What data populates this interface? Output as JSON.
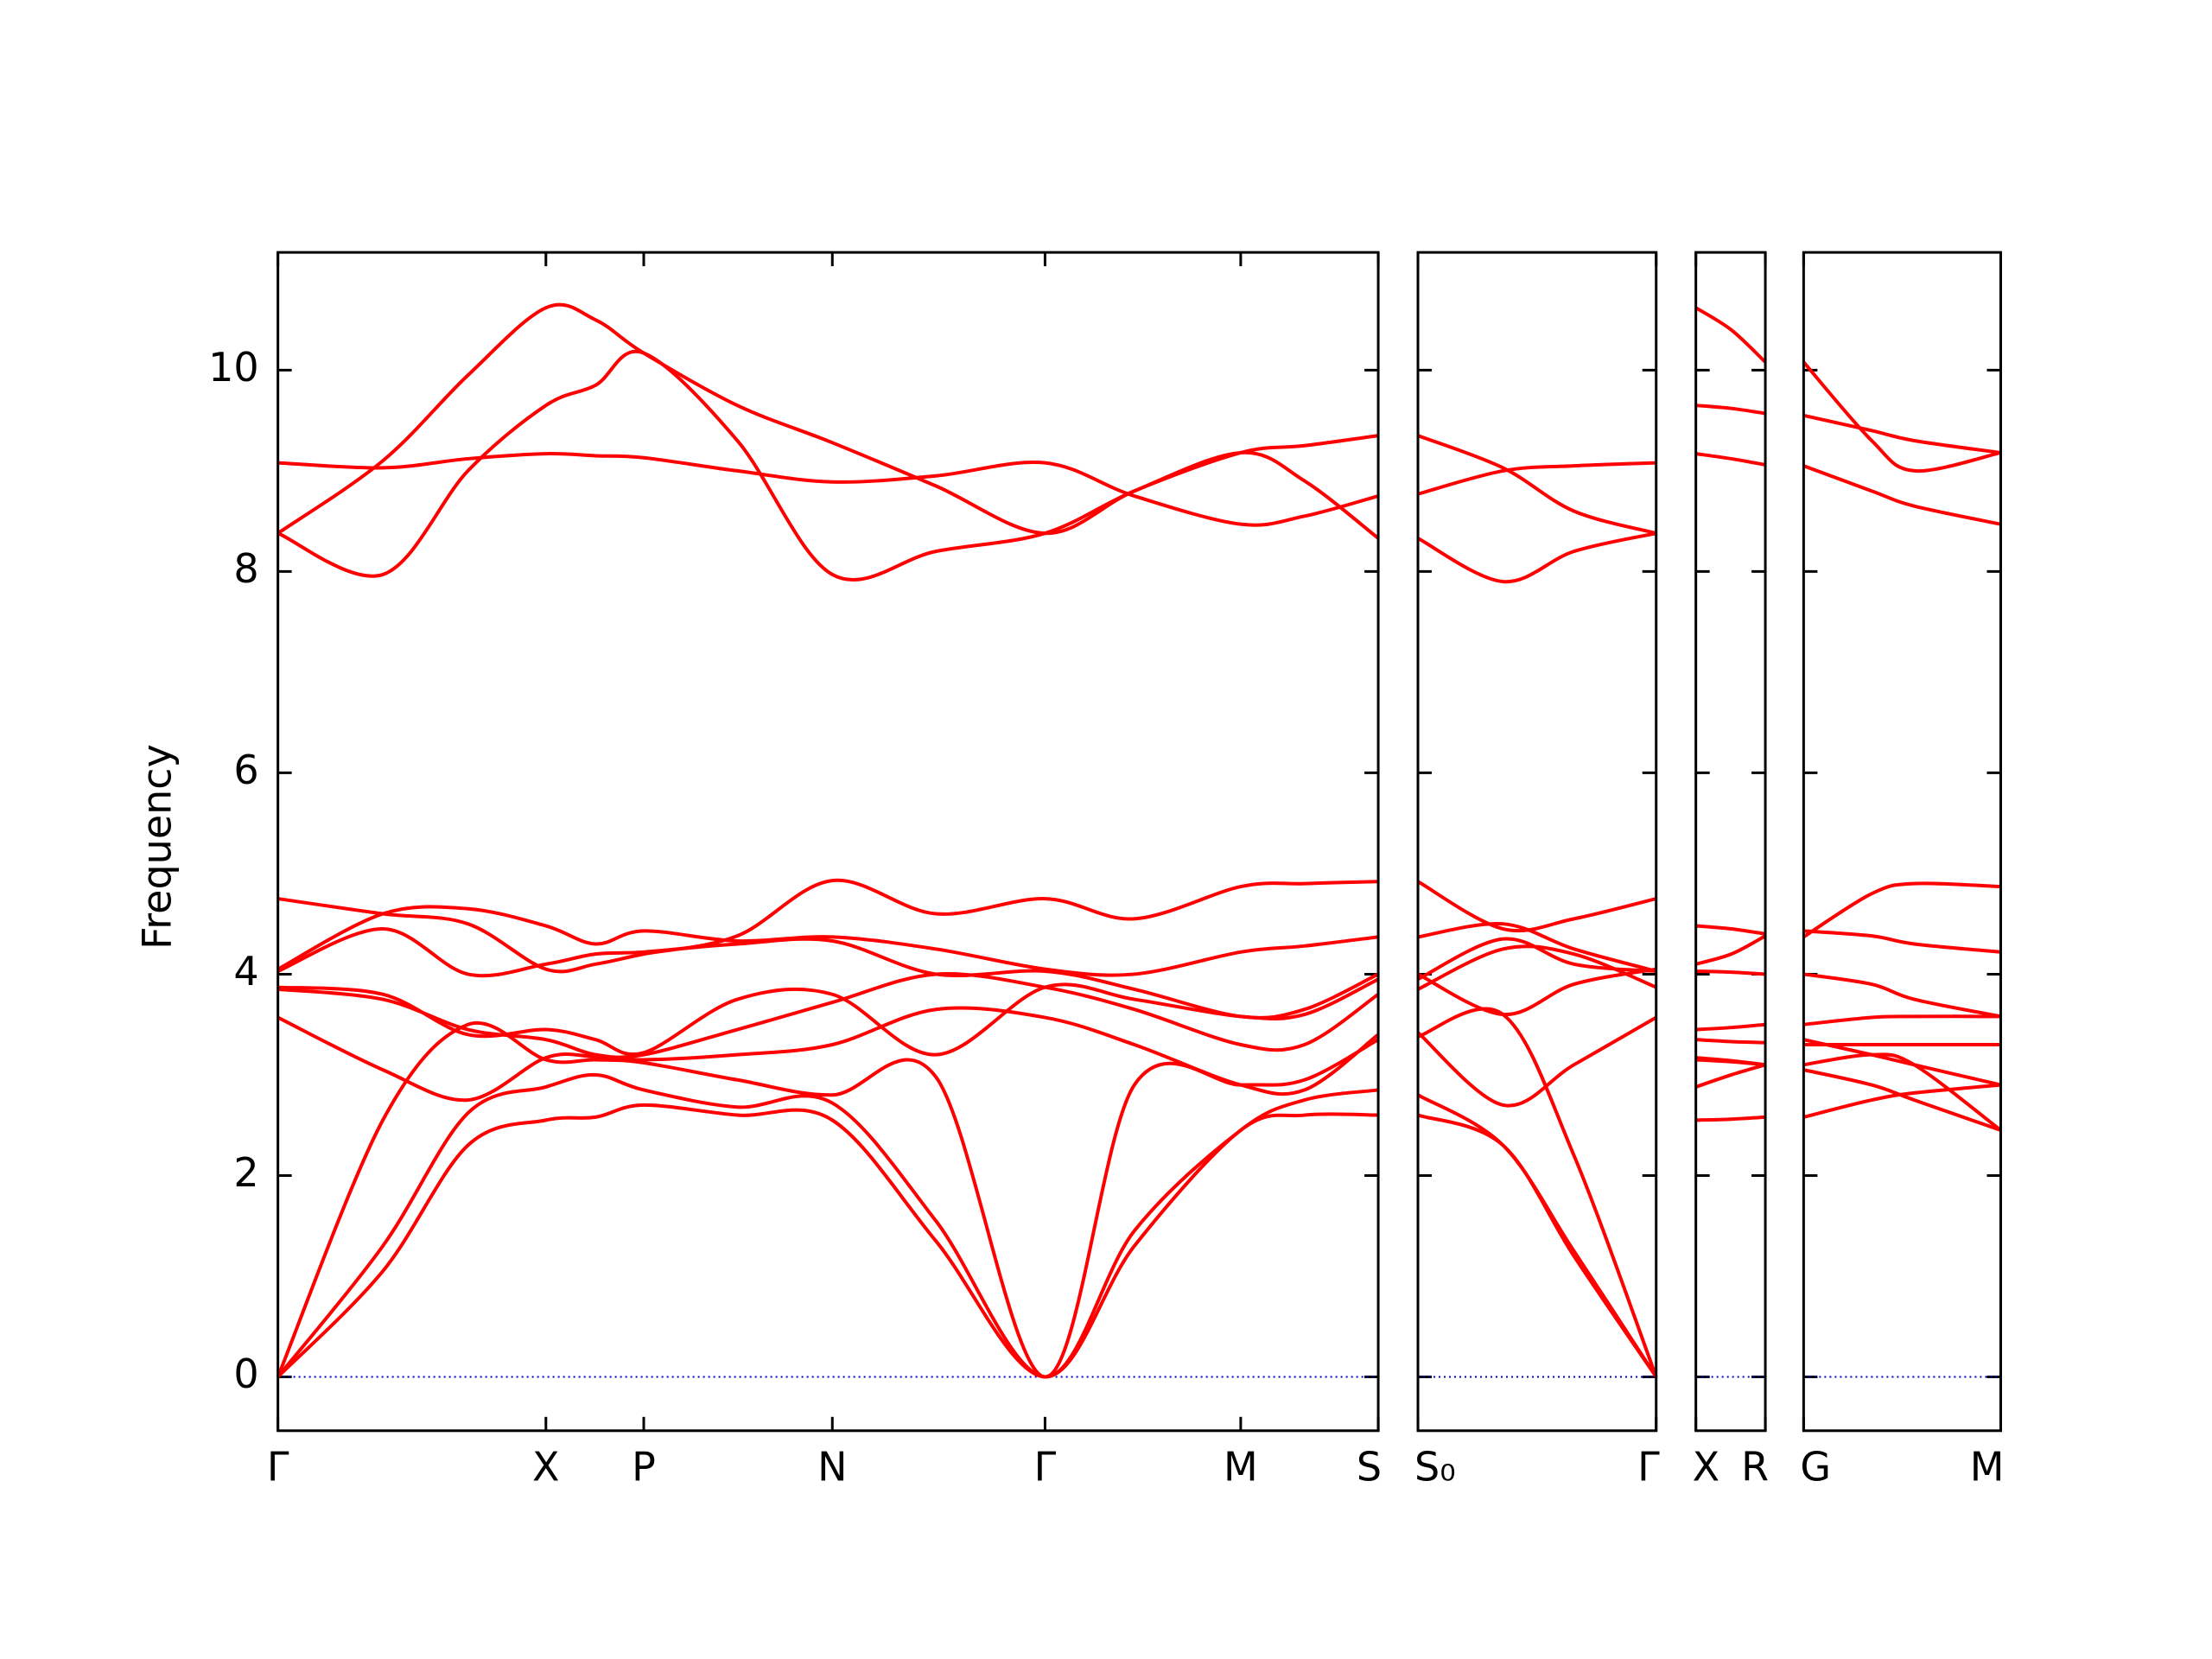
{
  "chart_data": [
    {
      "type": "line",
      "ylabel": "Frequency",
      "color": "#ff0000",
      "zero_line": 0,
      "xlim": [
        0,
        7.76
      ],
      "ylim": [
        -0.535,
        11.17
      ],
      "yticks": [
        0,
        2,
        4,
        6,
        8,
        10
      ],
      "xticks": [
        {
          "value": 0,
          "label": "Γ"
        },
        {
          "value": 1.89,
          "label": "X"
        },
        {
          "value": 2.58,
          "label": "P"
        },
        {
          "value": 3.91,
          "label": "N"
        },
        {
          "value": 5.41,
          "label": "Γ"
        },
        {
          "value": 6.79,
          "label": "M"
        },
        {
          "value": 7.76,
          "label": "S"
        }
      ],
      "x": [
        0,
        0.74,
        1.34,
        1.89,
        2.24,
        2.58,
        3.24,
        3.91,
        4.64,
        5.41,
        6.04,
        6.79,
        7.24,
        7.76
      ],
      "series": [
        {
          "values": [
            8.38,
            9.1,
            9.95,
            10.62,
            10.5,
            10.17,
            9.65,
            9.28,
            8.85,
            8.38,
            8.8,
            9.18,
            9.25,
            9.35
          ]
        },
        {
          "values": [
            8.38,
            7.97,
            9.0,
            9.65,
            9.85,
            10.17,
            9.3,
            7.97,
            8.2,
            8.38,
            8.8,
            9.18,
            8.9,
            8.33
          ]
        },
        {
          "values": [
            9.08,
            9.03,
            9.12,
            9.17,
            9.15,
            9.13,
            9.0,
            8.89,
            8.95,
            9.08,
            8.75,
            8.47,
            8.55,
            8.75
          ]
        },
        {
          "values": [
            0,
            1.05,
            2.3,
            2.55,
            2.58,
            2.7,
            2.6,
            2.55,
            1.35,
            0,
            1.3,
            2.45,
            2.6,
            2.6
          ]
        },
        {
          "values": [
            0,
            1.3,
            2.62,
            2.88,
            3.0,
            2.85,
            2.68,
            2.72,
            1.55,
            0,
            1.45,
            2.45,
            2.75,
            2.85
          ]
        },
        {
          "values": [
            0,
            2.55,
            3.5,
            3.15,
            3.15,
            3.12,
            2.95,
            2.8,
            2.98,
            0,
            2.9,
            2.9,
            2.95,
            3.35
          ]
        },
        {
          "values": [
            3.57,
            3.05,
            2.75,
            3.17,
            3.18,
            3.15,
            3.2,
            3.3,
            3.65,
            3.57,
            3.3,
            2.9,
            2.85,
            3.4
          ]
        },
        {
          "values": [
            3.85,
            3.75,
            3.45,
            3.35,
            3.2,
            3.2,
            3.45,
            3.72,
            4.0,
            3.87,
            3.65,
            3.3,
            3.3,
            3.8
          ]
        },
        {
          "values": [
            3.87,
            3.8,
            3.4,
            3.45,
            3.35,
            3.22,
            3.75,
            3.8,
            3.2,
            3.87,
            3.75,
            3.58,
            3.6,
            3.95
          ]
        },
        {
          "values": [
            4.03,
            4.45,
            4.0,
            4.1,
            4.2,
            4.22,
            4.3,
            4.33,
            4.0,
            4.03,
            3.85,
            3.58,
            3.65,
            4.0
          ]
        },
        {
          "values": [
            4.05,
            4.6,
            4.65,
            4.48,
            4.3,
            4.43,
            4.33,
            4.37,
            4.25,
            4.05,
            4.0,
            4.22,
            4.28,
            4.37
          ]
        },
        {
          "values": [
            4.75,
            4.6,
            4.5,
            4.05,
            4.1,
            4.2,
            4.38,
            4.93,
            4.6,
            4.75,
            4.55,
            4.87,
            4.9,
            4.92
          ]
        }
      ]
    },
    {
      "type": "line",
      "color": "#ff0000",
      "zero_line": 0,
      "xlim": [
        0,
        1.68
      ],
      "ylim": [
        -0.535,
        11.17
      ],
      "yticks": [
        0,
        2,
        4,
        6,
        8,
        10
      ],
      "xticks": [
        {
          "value": 0,
          "label": "S₀"
        },
        {
          "value": 1.68,
          "label": "Γ"
        }
      ],
      "x": [
        0,
        0.6,
        1.1,
        1.68
      ],
      "series": [
        {
          "values": [
            9.35,
            9.03,
            8.6,
            8.38
          ]
        },
        {
          "values": [
            8.33,
            7.9,
            8.2,
            8.38
          ]
        },
        {
          "values": [
            8.77,
            9.0,
            9.05,
            9.08
          ]
        },
        {
          "values": [
            2.6,
            2.3,
            1.2,
            0
          ]
        },
        {
          "values": [
            2.8,
            2.3,
            1.25,
            0
          ]
        },
        {
          "values": [
            3.38,
            3.6,
            2.2,
            0
          ]
        },
        {
          "values": [
            3.42,
            2.7,
            3.1,
            3.57
          ]
        },
        {
          "values": [
            3.85,
            4.25,
            4.2,
            3.87
          ]
        },
        {
          "values": [
            3.95,
            4.35,
            4.1,
            4.03
          ]
        },
        {
          "values": [
            4.0,
            3.6,
            3.9,
            4.05
          ]
        },
        {
          "values": [
            4.37,
            4.5,
            4.25,
            4.03
          ]
        },
        {
          "values": [
            4.92,
            4.45,
            4.55,
            4.75
          ]
        }
      ]
    },
    {
      "type": "line",
      "color": "#ff0000",
      "zero_line": 0,
      "xlim": [
        0,
        0.49
      ],
      "ylim": [
        -0.535,
        11.17
      ],
      "yticks": [
        0,
        2,
        4,
        6,
        8,
        10
      ],
      "xticks": [
        {
          "value": 0,
          "label": "X"
        },
        {
          "value": 0.49,
          "label": "R"
        }
      ],
      "x": [
        0,
        0.25,
        0.49
      ],
      "series": [
        {
          "values": [
            10.62,
            10.4,
            10.08
          ]
        },
        {
          "values": [
            9.65,
            9.62,
            9.57
          ]
        },
        {
          "values": [
            9.17,
            9.12,
            9.06
          ]
        },
        {
          "values": [
            2.55,
            2.56,
            2.58
          ]
        },
        {
          "values": [
            2.88,
            3.0,
            3.1
          ]
        },
        {
          "values": [
            3.15,
            3.13,
            3.1
          ]
        },
        {
          "values": [
            3.17,
            3.14,
            3.1
          ]
        },
        {
          "values": [
            3.35,
            3.33,
            3.32
          ]
        },
        {
          "values": [
            3.45,
            3.47,
            3.5
          ]
        },
        {
          "values": [
            4.03,
            4.02,
            4.0
          ]
        },
        {
          "values": [
            4.1,
            4.2,
            4.38
          ]
        },
        {
          "values": [
            4.48,
            4.45,
            4.4
          ]
        }
      ]
    },
    {
      "type": "line",
      "color": "#ff0000",
      "zero_line": 0,
      "xlim": [
        0,
        1.39
      ],
      "ylim": [
        -0.535,
        11.17
      ],
      "yticks": [
        0,
        2,
        4,
        6,
        8,
        10
      ],
      "xticks": [
        {
          "value": 0,
          "label": "G"
        },
        {
          "value": 1.39,
          "label": "M"
        }
      ],
      "x": [
        0,
        0.48,
        0.78,
        1.39
      ],
      "series": [
        {
          "values": [
            10.08,
            9.3,
            9.0,
            9.18
          ]
        },
        {
          "values": [
            9.55,
            9.4,
            9.3,
            9.18
          ]
        },
        {
          "values": [
            9.05,
            8.8,
            8.65,
            8.47
          ]
        },
        {
          "values": [
            2.58,
            2.75,
            2.82,
            2.9
          ]
        },
        {
          "values": [
            3.05,
            2.9,
            2.75,
            2.45
          ]
        },
        {
          "values": [
            3.1,
            3.2,
            3.1,
            2.45
          ]
        },
        {
          "values": [
            3.35,
            3.2,
            3.1,
            2.9
          ]
        },
        {
          "values": [
            3.3,
            3.3,
            3.3,
            3.3
          ]
        },
        {
          "values": [
            3.5,
            3.57,
            3.58,
            3.58
          ]
        },
        {
          "values": [
            4.0,
            3.9,
            3.75,
            3.58
          ]
        },
        {
          "values": [
            4.43,
            4.38,
            4.3,
            4.22
          ]
        },
        {
          "values": [
            4.37,
            4.8,
            4.9,
            4.87
          ]
        }
      ]
    }
  ]
}
